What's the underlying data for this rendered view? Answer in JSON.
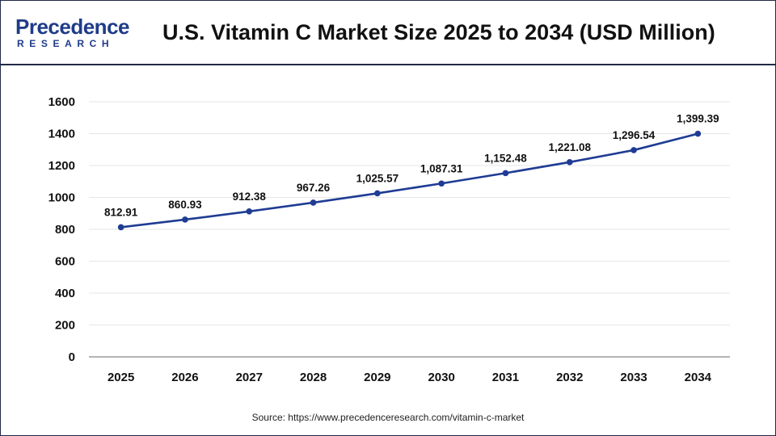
{
  "header": {
    "logo_top": "Precedence",
    "logo_bottom": "RESEARCH",
    "title": "U.S. Vitamin C Market Size 2025 to 2034 (USD Million)"
  },
  "footer": {
    "source": "Source: https://www.precedenceresearch.com/vitamin-c-market"
  },
  "colors": {
    "line": "#1f3c94",
    "grid": "#e6e6e6",
    "axis": "#888888",
    "text": "#111111"
  },
  "chart_data": {
    "type": "line",
    "title": "U.S. Vitamin C Market Size 2025 to 2034 (USD Million)",
    "xlabel": "",
    "ylabel": "",
    "categories": [
      "2025",
      "2026",
      "2027",
      "2028",
      "2029",
      "2030",
      "2031",
      "2032",
      "2033",
      "2034"
    ],
    "values": [
      812.91,
      860.93,
      912.38,
      967.26,
      1025.57,
      1087.31,
      1152.48,
      1221.08,
      1296.54,
      1399.39
    ],
    "labels": [
      "812.91",
      "860.93",
      "912.38",
      "967.26",
      "1,025.57",
      "1,087.31",
      "1,152.48",
      "1,221.08",
      "1,296.54",
      "1,399.39"
    ],
    "ylim": [
      0,
      1600
    ],
    "yticks": [
      "0",
      "200",
      "400",
      "600",
      "800",
      "1000",
      "1200",
      "1400",
      "1600"
    ],
    "grid": true,
    "legend": "none"
  }
}
